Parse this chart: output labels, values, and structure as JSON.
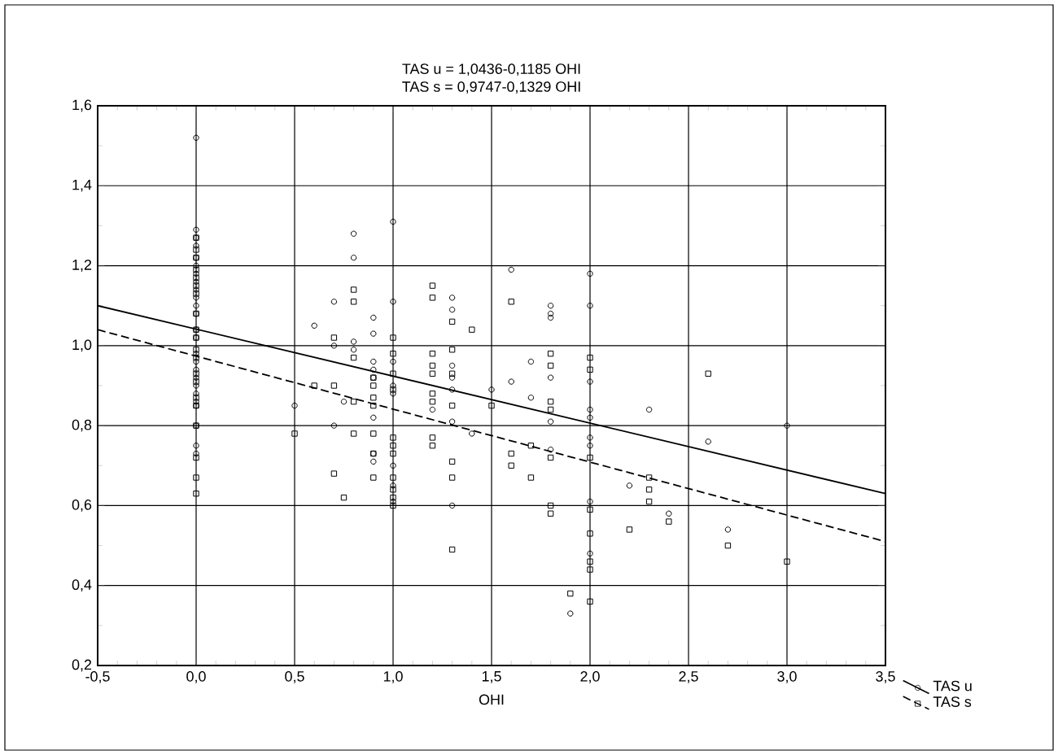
{
  "chart_data": {
    "type": "scatter",
    "title": "TAS u = 1,0436-0,1185 OHI",
    "subtitle": "TAS s = 0,9747-0,1329 OHI",
    "xlabel": "OHI",
    "xlim": [
      -0.5,
      3.5
    ],
    "ylim": [
      0.2,
      1.6
    ],
    "xticks": [
      {
        "value": -0.5,
        "label": "-0,5"
      },
      {
        "value": 0,
        "label": "0,0"
      },
      {
        "value": 0.5,
        "label": "0,5"
      },
      {
        "value": 1,
        "label": "1,0"
      },
      {
        "value": 1.5,
        "label": "1,5"
      },
      {
        "value": 2,
        "label": "2,0"
      },
      {
        "value": 2.5,
        "label": "2,5"
      },
      {
        "value": 3,
        "label": "3,0"
      },
      {
        "value": 3.5,
        "label": "3,5"
      }
    ],
    "yticks": [
      {
        "value": 0.2,
        "label": "0,2"
      },
      {
        "value": 0.4,
        "label": "0,4"
      },
      {
        "value": 0.6,
        "label": "0,6"
      },
      {
        "value": 0.8,
        "label": "0,8"
      },
      {
        "value": 1.0,
        "label": "1,0"
      },
      {
        "value": 1.2,
        "label": "1,2"
      },
      {
        "value": 1.4,
        "label": "1,4"
      },
      {
        "value": 1.6,
        "label": "1,6"
      }
    ],
    "grid": true,
    "legend": "bottom right",
    "series": [
      {
        "name": "TAS u",
        "color": "#000000",
        "marker": "circle",
        "x": [
          0,
          0,
          0,
          0,
          0,
          0,
          0,
          0,
          0,
          0,
          0,
          0,
          0,
          0,
          0,
          0,
          0,
          0,
          0,
          0,
          0,
          0,
          0,
          0,
          0,
          0.5,
          0.6,
          0.7,
          0.7,
          0.7,
          0.75,
          0.8,
          0.8,
          0.8,
          0.8,
          0.9,
          0.9,
          0.9,
          0.9,
          0.9,
          0.9,
          0.9,
          0.9,
          1,
          1,
          1,
          1,
          1,
          1,
          1,
          1,
          1.2,
          1.3,
          1.3,
          1.3,
          1.3,
          1.3,
          1.3,
          1.3,
          1.4,
          1.5,
          1.6,
          1.6,
          1.7,
          1.7,
          1.8,
          1.8,
          1.8,
          1.8,
          1.8,
          1.8,
          1.9,
          2,
          2,
          2,
          2,
          2,
          2,
          2,
          2,
          2,
          2.2,
          2.3,
          2.4,
          2.6,
          2.7,
          3
        ],
        "values": [
          1.52,
          1.29,
          1.27,
          1.25,
          1.22,
          1.2,
          1.18,
          1.16,
          1.14,
          1.12,
          1.1,
          1.08,
          1.04,
          1.02,
          0.98,
          0.96,
          0.94,
          0.92,
          0.9,
          0.88,
          0.86,
          0.85,
          0.8,
          0.75,
          0.73,
          0.85,
          1.05,
          1.11,
          1.0,
          0.8,
          0.86,
          1.28,
          1.22,
          1.01,
          0.99,
          1.07,
          1.03,
          0.96,
          0.94,
          0.92,
          0.82,
          0.73,
          0.71,
          1.31,
          1.11,
          0.96,
          0.9,
          0.88,
          0.7,
          0.65,
          0.61,
          0.84,
          1.12,
          1.09,
          0.95,
          0.92,
          0.89,
          0.81,
          0.6,
          0.78,
          0.89,
          1.19,
          0.91,
          0.96,
          0.87,
          1.1,
          1.08,
          1.07,
          0.92,
          0.81,
          0.74,
          0.33,
          1.18,
          1.1,
          0.91,
          0.84,
          0.82,
          0.77,
          0.75,
          0.61,
          0.48,
          0.65,
          0.84,
          0.58,
          0.76,
          0.54,
          0.8
        ]
      },
      {
        "name": "TAS s",
        "color": "#000000",
        "marker": "square",
        "x": [
          0,
          0,
          0,
          0,
          0,
          0,
          0,
          0,
          0,
          0,
          0,
          0,
          0,
          0,
          0,
          0,
          0,
          0,
          0,
          0,
          0.5,
          0.6,
          0.7,
          0.7,
          0.7,
          0.75,
          0.8,
          0.8,
          0.8,
          0.8,
          0.8,
          0.9,
          0.9,
          0.9,
          0.9,
          0.9,
          0.9,
          0.9,
          1,
          1,
          1,
          1,
          1,
          1,
          1,
          1,
          1,
          1,
          1,
          1.2,
          1.2,
          1.2,
          1.2,
          1.2,
          1.2,
          1.2,
          1.2,
          1.2,
          1.3,
          1.3,
          1.3,
          1.3,
          1.3,
          1.3,
          1.3,
          1.4,
          1.5,
          1.6,
          1.6,
          1.6,
          1.7,
          1.7,
          1.8,
          1.8,
          1.8,
          1.8,
          1.8,
          1.8,
          1.8,
          1.9,
          2,
          2,
          2,
          2,
          2,
          2,
          2,
          2,
          2.2,
          2.3,
          2.3,
          2.3,
          2.4,
          2.6,
          2.7,
          3
        ],
        "values": [
          1.27,
          1.24,
          1.22,
          1.19,
          1.17,
          1.15,
          1.13,
          1.08,
          1.04,
          1.02,
          0.99,
          0.97,
          0.93,
          0.91,
          0.87,
          0.85,
          0.8,
          0.72,
          0.67,
          0.63,
          0.78,
          0.9,
          1.02,
          0.9,
          0.68,
          0.62,
          1.14,
          1.11,
          0.97,
          0.86,
          0.78,
          0.92,
          0.9,
          0.87,
          0.85,
          0.78,
          0.73,
          0.67,
          1.02,
          0.98,
          0.93,
          0.89,
          0.77,
          0.75,
          0.73,
          0.67,
          0.64,
          0.62,
          0.6,
          1.15,
          1.12,
          0.98,
          0.95,
          0.93,
          0.88,
          0.86,
          0.77,
          0.75,
          1.06,
          0.99,
          0.93,
          0.85,
          0.71,
          0.67,
          0.49,
          1.04,
          0.85,
          1.11,
          0.73,
          0.7,
          0.75,
          0.67,
          0.98,
          0.95,
          0.86,
          0.84,
          0.72,
          0.6,
          0.58,
          0.38,
          0.97,
          0.94,
          0.72,
          0.59,
          0.53,
          0.46,
          0.44,
          0.36,
          0.54,
          0.67,
          0.64,
          0.61,
          0.56,
          0.93,
          0.5,
          0.46
        ]
      },
      {
        "type": "line",
        "color": "#000000",
        "marker": "none",
        "line_style": "solid",
        "x": [
          -0.5,
          3.5
        ],
        "values": [
          1.1,
          0.63
        ]
      },
      {
        "type": "line",
        "color": "#000000",
        "marker": "none",
        "line_style": "dashed",
        "x": [
          -0.5,
          3.5
        ],
        "values": [
          1.04,
          0.51
        ]
      }
    ]
  }
}
